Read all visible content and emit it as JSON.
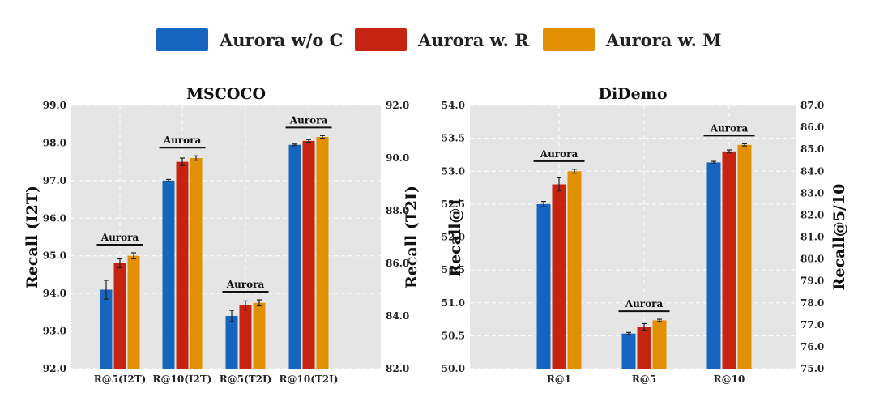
{
  "legend": {
    "series": [
      {
        "name": "Aurora w/o C",
        "color": "#1565C0"
      },
      {
        "name": "Aurora w. R",
        "color": "#C62410"
      },
      {
        "name": "Aurora w. M",
        "color": "#E09000"
      }
    ]
  },
  "chart_data": [
    {
      "type": "bar",
      "title": "MSCOCO",
      "ylabel_left": "Recall (I2T)",
      "ylabel_right": "Recall (T2I)",
      "ylim_left": [
        92.0,
        99.0
      ],
      "ylim_right": [
        82.0,
        92.0
      ],
      "yticks_left": [
        "92.0",
        "93.0",
        "94.0",
        "95.0",
        "96.0",
        "97.0",
        "98.0",
        "99.0"
      ],
      "yticks_right": [
        "82.0",
        "84.0",
        "86.0",
        "88.0",
        "90.0",
        "92.0"
      ],
      "categories": [
        "R@5(I2T)",
        "R@10(I2T)",
        "R@5(T2I)",
        "R@10(T2I)"
      ],
      "category_axis": [
        "left",
        "left",
        "left",
        "right"
      ],
      "series": [
        {
          "name": "Aurora w/o C",
          "values": [
            94.1,
            97.0,
            93.4,
            90.5
          ],
          "errors": [
            0.25,
            0.03,
            0.15,
            0.03
          ]
        },
        {
          "name": "Aurora w. R",
          "values": [
            94.8,
            97.5,
            93.68,
            90.65
          ],
          "errors": [
            0.12,
            0.1,
            0.12,
            0.05
          ]
        },
        {
          "name": "Aurora w. M",
          "values": [
            95.0,
            97.6,
            93.75,
            90.8
          ],
          "errors": [
            0.08,
            0.06,
            0.08,
            0.05
          ]
        }
      ],
      "annotations": [
        "Aurora",
        "Aurora",
        "Aurora",
        "Aurora"
      ],
      "grid": true
    },
    {
      "type": "bar",
      "title": "DiDemo",
      "ylabel_left": "Recall@1",
      "ylabel_right": "Recall@5/10",
      "ylim_left": [
        50.0,
        54.0
      ],
      "ylim_right": [
        75.0,
        87.0
      ],
      "yticks_left": [
        "50.0",
        "50.5",
        "51.0",
        "51.5",
        "52.0",
        "52.5",
        "53.0",
        "53.5",
        "54.0"
      ],
      "yticks_right": [
        "75.0",
        "76.0",
        "77.0",
        "78.0",
        "79.0",
        "80.0",
        "81.0",
        "82.0",
        "83.0",
        "84.0",
        "85.0",
        "86.0",
        "87.0"
      ],
      "categories": [
        "R@1",
        "R@5",
        "R@10"
      ],
      "category_axis": [
        "left",
        "right",
        "right"
      ],
      "series": [
        {
          "name": "Aurora w/o C",
          "values": [
            52.5,
            76.6,
            84.4
          ],
          "errors": [
            0.04,
            0.05,
            0.05
          ]
        },
        {
          "name": "Aurora w. R",
          "values": [
            52.8,
            76.9,
            84.9
          ],
          "errors": [
            0.1,
            0.15,
            0.07
          ]
        },
        {
          "name": "Aurora w. M",
          "values": [
            53.0,
            77.2,
            85.2
          ],
          "errors": [
            0.03,
            0.05,
            0.05
          ]
        }
      ],
      "annotations": [
        "Aurora",
        "Aurora",
        "Aurora"
      ],
      "grid": true
    }
  ]
}
